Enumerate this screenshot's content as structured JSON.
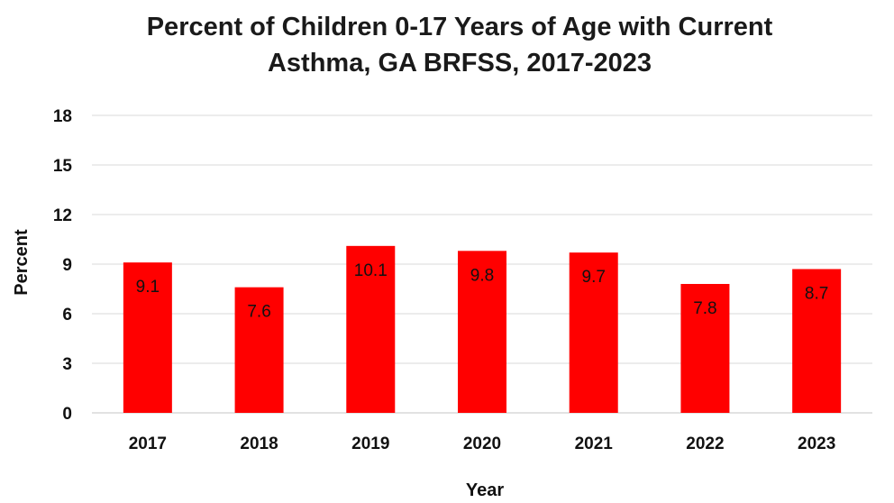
{
  "chart_data": {
    "type": "bar",
    "title_line1": "Percent of Children 0-17 Years of Age with Current",
    "title_line2": "Asthma, GA BRFSS, 2017-2023",
    "xlabel": "Year",
    "ylabel": "Percent",
    "categories": [
      "2017",
      "2018",
      "2019",
      "2020",
      "2021",
      "2022",
      "2023"
    ],
    "values": [
      9.1,
      7.6,
      10.1,
      9.8,
      9.7,
      7.8,
      8.7
    ],
    "data_labels": [
      "9.1",
      "7.6",
      "10.1",
      "9.8",
      "9.7",
      "7.8",
      "8.7"
    ],
    "ylim": [
      0,
      18
    ],
    "yticks": [
      "0",
      "3",
      "6",
      "9",
      "12",
      "15",
      "18"
    ],
    "grid": true,
    "legend": "none",
    "bar_color": "#FF0000",
    "grid_color": "#d9d9d9"
  }
}
